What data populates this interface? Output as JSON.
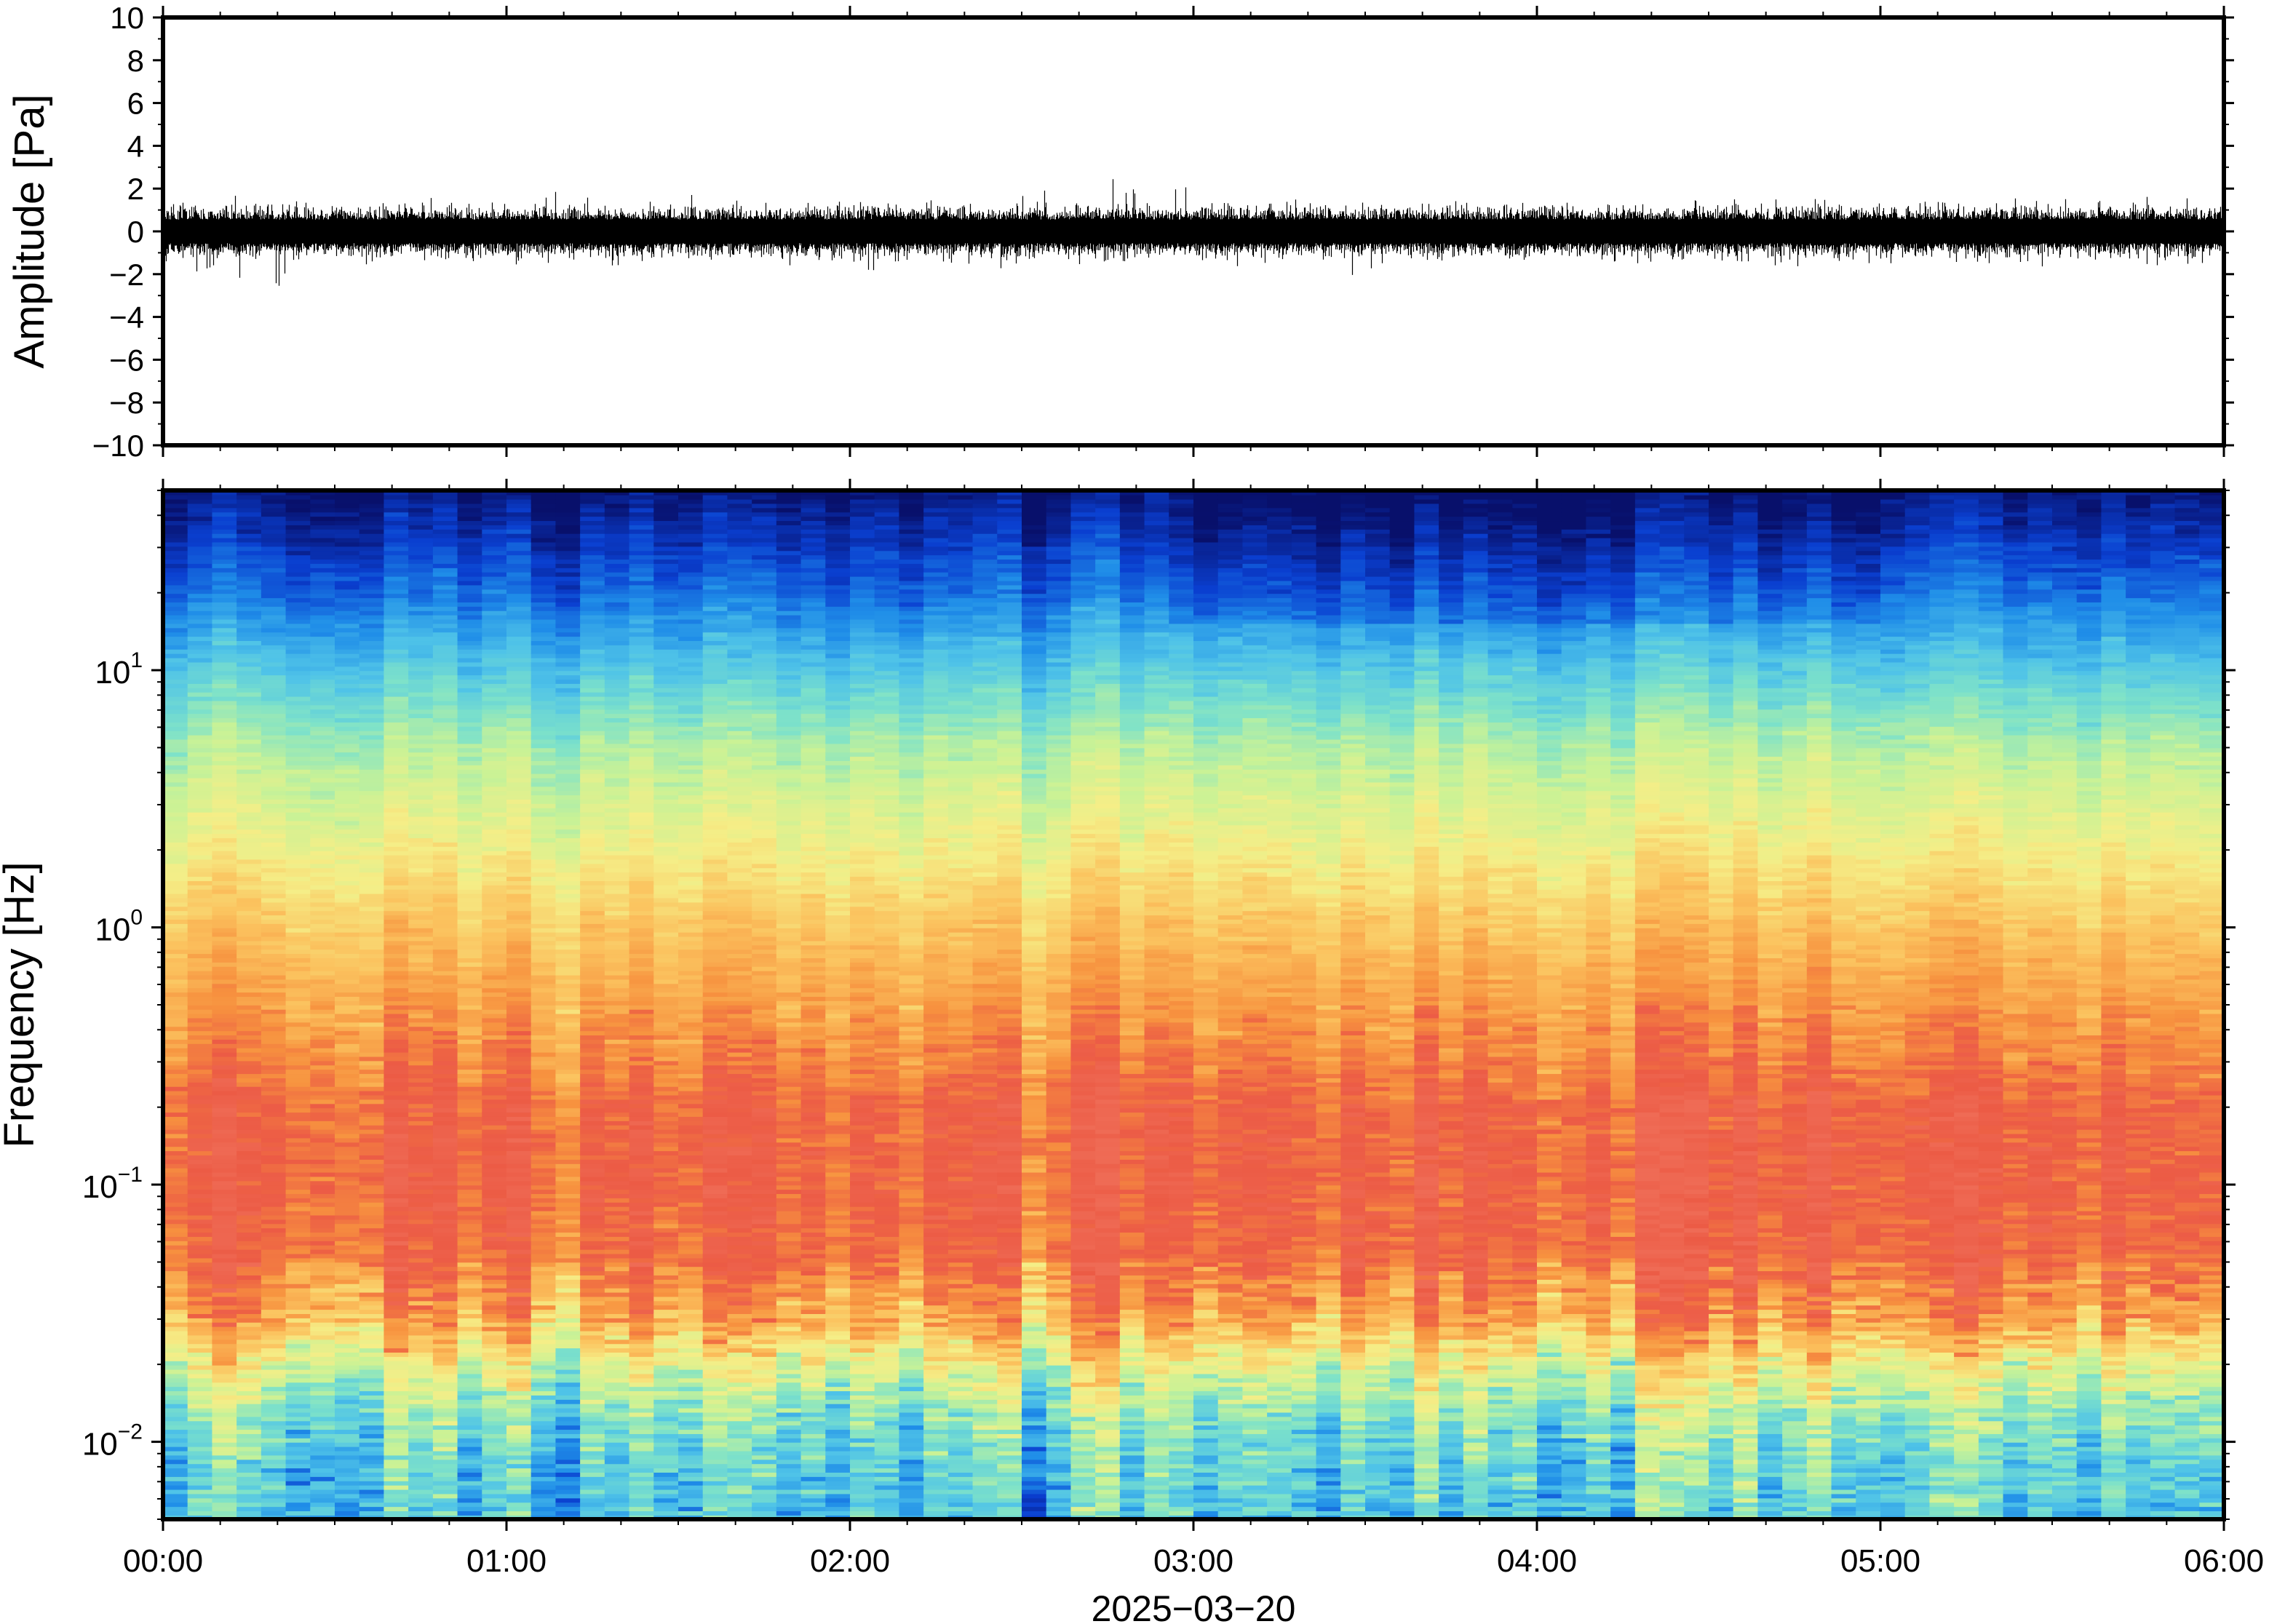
{
  "chart_data": [
    {
      "type": "line",
      "panel": "waveform",
      "ylabel": "Amplitude [Pa]",
      "ylim": [
        -10,
        10
      ],
      "yticks": [
        -10,
        -8,
        -6,
        -4,
        -2,
        0,
        2,
        4,
        6,
        8,
        10
      ],
      "ytick_labels": [
        "−10",
        "−8",
        "−6",
        "−4",
        "−2",
        "0",
        "2",
        "4",
        "6",
        "8",
        "10"
      ],
      "xlim": [
        "00:00",
        "06:00"
      ],
      "series": [
        {
          "envelope_hours": [
            0.0,
            0.25,
            0.5,
            0.75,
            1.0,
            1.25,
            1.5,
            1.75,
            2.0,
            2.25,
            2.5,
            2.75,
            3.0,
            3.25,
            3.5,
            3.75,
            4.0,
            4.25,
            4.5,
            4.75,
            5.0,
            5.25,
            5.5,
            5.75,
            6.0
          ],
          "envelope_max_pa": [
            1.6,
            1.9,
            1.8,
            1.6,
            1.7,
            2.0,
            1.7,
            1.8,
            1.6,
            1.5,
            1.8,
            2.5,
            2.2,
            1.6,
            1.5,
            1.5,
            1.5,
            1.6,
            2.1,
            1.6,
            2.1,
            1.6,
            1.5,
            1.7,
            1.5
          ],
          "envelope_min_pa": [
            -1.5,
            -2.7,
            -2.3,
            -1.6,
            -1.7,
            -1.6,
            -1.6,
            -2.2,
            -2.0,
            -1.5,
            -1.8,
            -1.5,
            -1.6,
            -1.7,
            -2.2,
            -1.5,
            -1.5,
            -1.6,
            -1.6,
            -1.8,
            -2.0,
            -2.1,
            -1.7,
            -1.8,
            -1.5
          ]
        }
      ],
      "color": "#000000"
    },
    {
      "type": "heatmap",
      "panel": "spectrogram",
      "ylabel": "Frequency [Hz]",
      "yscale": "log",
      "ylim_hz": [
        0.005,
        50
      ],
      "ytick_hz": [
        0.01,
        0.1,
        1,
        10
      ],
      "ytick_labels": [
        {
          "base": "10",
          "exp": "−2"
        },
        {
          "base": "10",
          "exp": "−1"
        },
        {
          "base": "10",
          "exp": "0"
        },
        {
          "base": "10",
          "exp": "1"
        }
      ],
      "xlabel": "2025−03−20",
      "xticks": [
        "00:00",
        "01:00",
        "02:00",
        "03:00",
        "04:00",
        "05:00",
        "06:00"
      ],
      "colormap": [
        "#08106b",
        "#0a3fd0",
        "#1f8de8",
        "#4fc3e8",
        "#7ee2c9",
        "#c9f296",
        "#f5ee87",
        "#fbc25e",
        "#f7923f",
        "#ec5b45",
        "#ef6b55"
      ],
      "colormap_stops": [
        0.0,
        0.1,
        0.2,
        0.3,
        0.4,
        0.5,
        0.6,
        0.7,
        0.8,
        0.9,
        1.0
      ],
      "frequency_profile": {
        "freq_hz": [
          50,
          30,
          20,
          10,
          5,
          2,
          1,
          0.5,
          0.3,
          0.2,
          0.1,
          0.05,
          0.03,
          0.02,
          0.012,
          0.008,
          0.005
        ],
        "level": [
          0.02,
          0.1,
          0.17,
          0.33,
          0.48,
          0.6,
          0.7,
          0.78,
          0.84,
          0.9,
          0.91,
          0.88,
          0.77,
          0.58,
          0.42,
          0.36,
          0.33
        ]
      }
    }
  ]
}
